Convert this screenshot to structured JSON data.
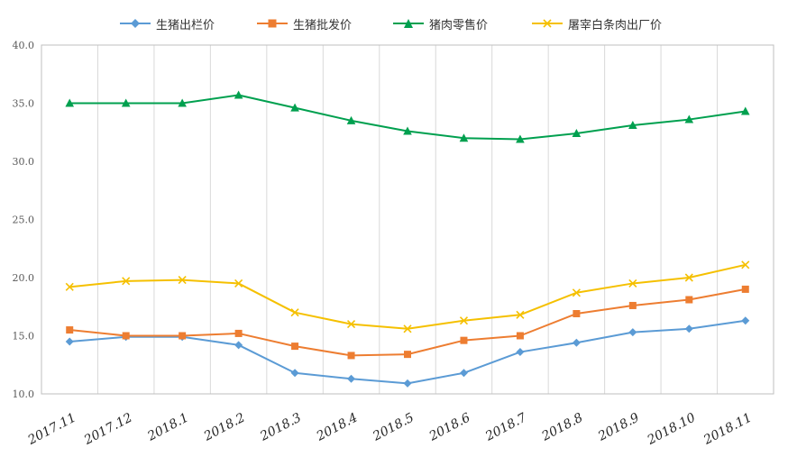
{
  "chart_data": {
    "type": "line",
    "categories": [
      "2017.11",
      "2017.12",
      "2018.1",
      "2018.2",
      "2018.3",
      "2018.4",
      "2018.5",
      "2018.6",
      "2018.7",
      "2018.8",
      "2018.9",
      "2018.10",
      "2018.11"
    ],
    "ylim": [
      10,
      40
    ],
    "yticks": [
      "10.0",
      "15.0",
      "20.0",
      "25.0",
      "30.0",
      "35.0",
      "40.0"
    ],
    "grid": "vertical",
    "legend_position": "top",
    "series": [
      {
        "name": "生猪出栏价",
        "color": "#5b9bd5",
        "marker": "diamond",
        "values": [
          14.5,
          14.9,
          14.9,
          14.2,
          11.8,
          11.3,
          10.9,
          11.8,
          13.6,
          14.4,
          15.3,
          15.6,
          16.3
        ]
      },
      {
        "name": "生猪批发价",
        "color": "#ed7d31",
        "marker": "square",
        "values": [
          15.5,
          15.0,
          15.0,
          15.2,
          14.1,
          13.3,
          13.4,
          14.6,
          15.0,
          16.9,
          17.6,
          18.1,
          19.0
        ]
      },
      {
        "name": "猪肉零售价",
        "color": "#00a04f",
        "marker": "triangle",
        "values": [
          35.0,
          35.0,
          35.0,
          35.7,
          34.6,
          33.5,
          32.6,
          32.0,
          31.9,
          32.4,
          33.1,
          33.6,
          34.3
        ]
      },
      {
        "name": "屠宰白条肉出厂价",
        "color": "#f5c000",
        "marker": "x",
        "values": [
          19.2,
          19.7,
          19.8,
          19.5,
          17.0,
          16.0,
          15.6,
          16.3,
          16.8,
          18.7,
          19.5,
          20.0,
          21.1
        ]
      }
    ]
  }
}
